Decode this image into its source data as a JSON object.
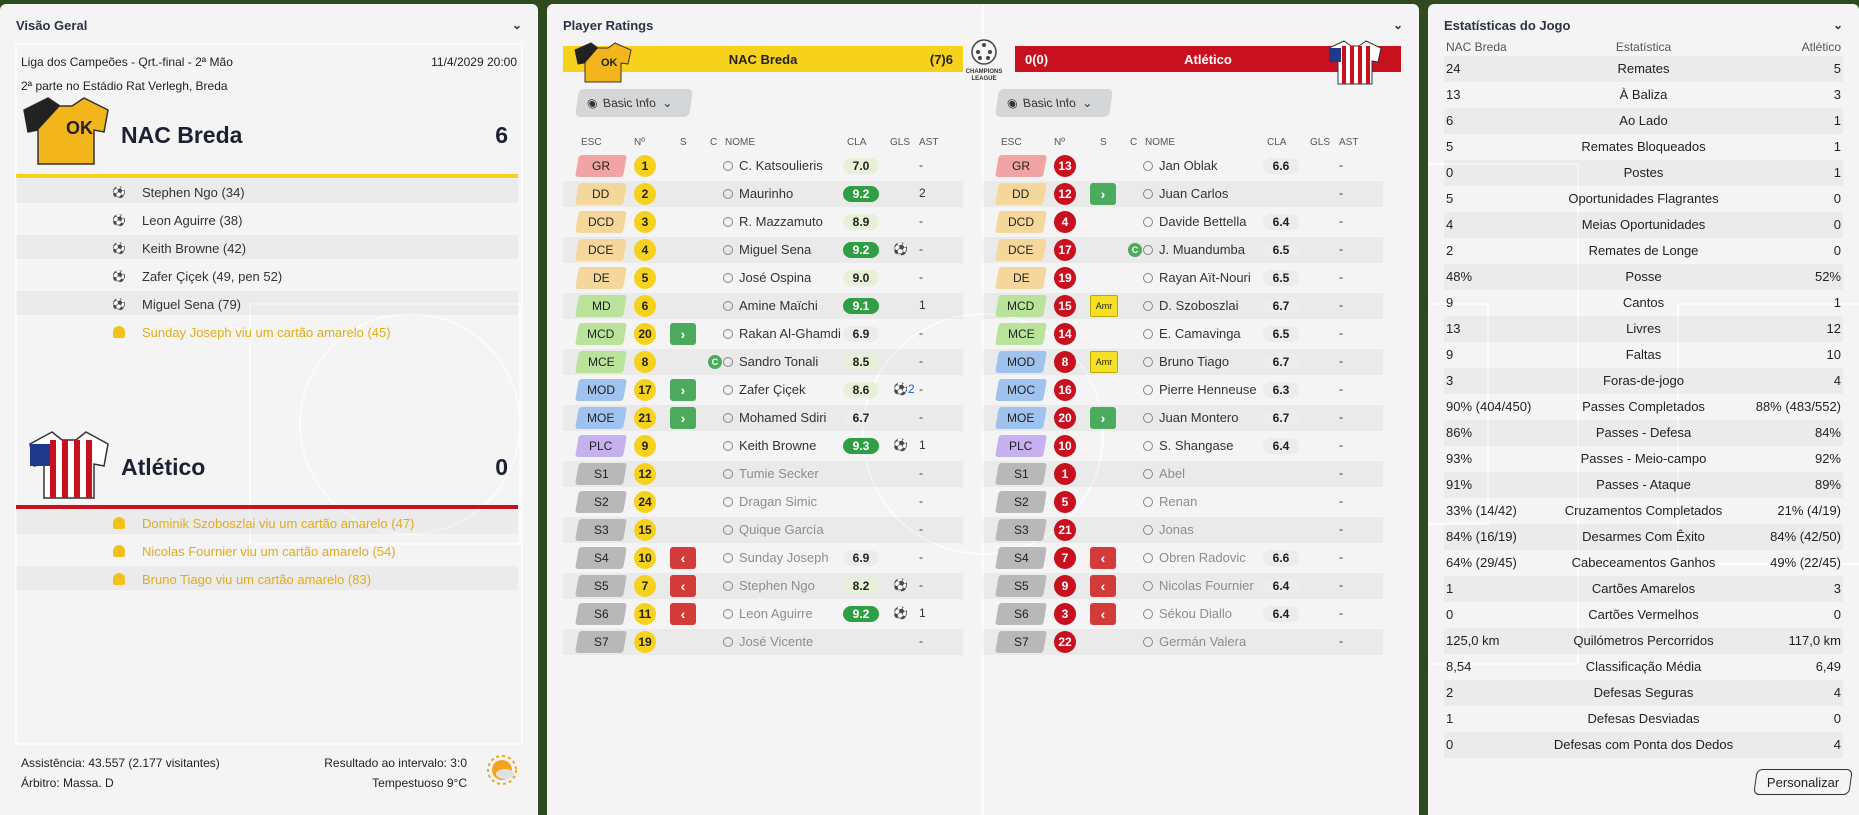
{
  "overview": {
    "title": "Visão Geral",
    "competition": "Liga dos Campeões - Qrt.-final - 2ª Mão",
    "datetime": "11/4/2029 20:00",
    "venue": "2ª parte no Estádio Rat Verlegh, Breda",
    "home": {
      "name": "NAC Breda",
      "score": "6",
      "color": "#f7d21d",
      "events": [
        {
          "type": "goal",
          "text": "Stephen Ngo (34)"
        },
        {
          "type": "goal",
          "text": "Leon Aguirre (38)"
        },
        {
          "type": "goal",
          "text": "Keith Browne (42)"
        },
        {
          "type": "goal",
          "text": "Zafer Çiçek (49, pen 52)"
        },
        {
          "type": "goal",
          "text": "Miguel Sena (79)"
        },
        {
          "type": "yellow",
          "text": "Sunday Joseph viu um cartão amarelo (45)"
        }
      ]
    },
    "away": {
      "name": "Atlético",
      "score": "0",
      "color": "#c8101e",
      "events": [
        {
          "type": "yellow",
          "text": "Dominik Szoboszlai viu um cartão amarelo (47)"
        },
        {
          "type": "yellow",
          "text": "Nicolas Fournier viu um cartão amarelo (54)"
        },
        {
          "type": "yellow",
          "text": "Bruno Tiago viu um cartão amarelo (83)"
        }
      ]
    },
    "attendance": "Assistência: 43.557 (2.177 visitantes)",
    "referee": "Árbitro: Massa. D",
    "halftime": "Resultado ao intervalo: 3:0",
    "weather": "Tempestuoso 9°C"
  },
  "ratings": {
    "title": "Player Ratings",
    "home_bar": {
      "name": "NAC Breda",
      "score": "(7)6"
    },
    "away_bar": {
      "score": "0(0)",
      "name": "Atlético"
    },
    "badge": "CHAMPIONS LEAGUE",
    "basic_info": "Basic Info",
    "columns": {
      "esc": "ESC",
      "num": "Nº",
      "s": "S",
      "c": "C",
      "name": "NOME",
      "cla": "CLA",
      "gls": "GLS",
      "ast": "AST"
    },
    "home_players": [
      {
        "pos": "GR",
        "num": "1",
        "sub": "",
        "cap": false,
        "name": "C. Katsoulieris",
        "rating": "7.0",
        "rc": "l",
        "gls": "",
        "ast": "-",
        "dim": false
      },
      {
        "pos": "DD",
        "num": "2",
        "sub": "",
        "cap": false,
        "name": "Maurinho",
        "rating": "9.2",
        "rc": "g",
        "gls": "",
        "ast": "2",
        "dim": false
      },
      {
        "pos": "DCD",
        "num": "3",
        "sub": "",
        "cap": false,
        "name": "R. Mazzamuto",
        "rating": "8.9",
        "rc": "l",
        "gls": "",
        "ast": "-",
        "dim": false
      },
      {
        "pos": "DCE",
        "num": "4",
        "sub": "",
        "cap": false,
        "name": "Miguel Sena",
        "rating": "9.2",
        "rc": "g",
        "gls": "⚽",
        "ast": "-",
        "dim": false
      },
      {
        "pos": "DE",
        "num": "5",
        "sub": "",
        "cap": false,
        "name": "José Ospina",
        "rating": "9.0",
        "rc": "l",
        "gls": "",
        "ast": "-",
        "dim": false
      },
      {
        "pos": "MD",
        "num": "6",
        "sub": "",
        "cap": false,
        "name": "Amine Maïchi",
        "rating": "9.1",
        "rc": "g",
        "gls": "",
        "ast": "1",
        "dim": false
      },
      {
        "pos": "MCD",
        "num": "20",
        "sub": "in",
        "cap": false,
        "name": "Rakan Al-Ghamdi",
        "rating": "6.9",
        "rc": "w",
        "gls": "",
        "ast": "-",
        "dim": false
      },
      {
        "pos": "MCE",
        "num": "8",
        "sub": "",
        "cap": true,
        "name": "Sandro Tonali",
        "rating": "8.5",
        "rc": "l",
        "gls": "",
        "ast": "-",
        "dim": false
      },
      {
        "pos": "MOD",
        "num": "17",
        "sub": "in",
        "cap": false,
        "name": "Zafer Çiçek",
        "rating": "8.6",
        "rc": "l",
        "gls": "⚽2",
        "ast": "-",
        "dim": false
      },
      {
        "pos": "MOE",
        "num": "21",
        "sub": "in",
        "cap": false,
        "name": "Mohamed Sdiri",
        "rating": "6.7",
        "rc": "w",
        "gls": "",
        "ast": "-",
        "dim": false
      },
      {
        "pos": "PLC",
        "num": "9",
        "sub": "",
        "cap": false,
        "name": "Keith Browne",
        "rating": "9.3",
        "rc": "g",
        "gls": "⚽",
        "ast": "1",
        "dim": false
      },
      {
        "pos": "S1",
        "num": "12",
        "sub": "",
        "cap": false,
        "name": "Tumie Secker",
        "rating": "",
        "rc": "",
        "gls": "",
        "ast": "-",
        "dim": true
      },
      {
        "pos": "S2",
        "num": "24",
        "sub": "",
        "cap": false,
        "name": "Dragan Simic",
        "rating": "",
        "rc": "",
        "gls": "",
        "ast": "-",
        "dim": true
      },
      {
        "pos": "S3",
        "num": "15",
        "sub": "",
        "cap": false,
        "name": "Quique García",
        "rating": "",
        "rc": "",
        "gls": "",
        "ast": "-",
        "dim": true
      },
      {
        "pos": "S4",
        "num": "10",
        "sub": "out",
        "cap": false,
        "name": "Sunday Joseph",
        "rating": "6.9",
        "rc": "w",
        "gls": "",
        "ast": "-",
        "dim": true
      },
      {
        "pos": "S5",
        "num": "7",
        "sub": "out",
        "cap": false,
        "name": "Stephen Ngo",
        "rating": "8.2",
        "rc": "l",
        "gls": "⚽",
        "ast": "-",
        "dim": true
      },
      {
        "pos": "S6",
        "num": "11",
        "sub": "out",
        "cap": false,
        "name": "Leon Aguirre",
        "rating": "9.2",
        "rc": "g",
        "gls": "⚽",
        "ast": "1",
        "dim": true
      },
      {
        "pos": "S7",
        "num": "19",
        "sub": "",
        "cap": false,
        "name": "José Vicente",
        "rating": "",
        "rc": "",
        "gls": "",
        "ast": "-",
        "dim": true
      }
    ],
    "away_players": [
      {
        "pos": "GR",
        "num": "13",
        "sub": "",
        "cap": false,
        "name": "Jan Oblak",
        "rating": "6.6",
        "rc": "w",
        "gls": "",
        "ast": "-",
        "dim": false
      },
      {
        "pos": "DD",
        "num": "12",
        "sub": "in",
        "cap": false,
        "name": "Juan Carlos",
        "rating": "",
        "rc": "",
        "gls": "",
        "ast": "-",
        "dim": false
      },
      {
        "pos": "DCD",
        "num": "4",
        "sub": "",
        "cap": false,
        "name": "Davide Bettella",
        "rating": "6.4",
        "rc": "w",
        "gls": "",
        "ast": "-",
        "dim": false
      },
      {
        "pos": "DCE",
        "num": "17",
        "sub": "",
        "cap": true,
        "name": "J. Muandumba",
        "rating": "6.5",
        "rc": "w",
        "gls": "",
        "ast": "-",
        "dim": false
      },
      {
        "pos": "DE",
        "num": "19",
        "sub": "",
        "cap": false,
        "name": "Rayan Aït-Nouri",
        "rating": "6.5",
        "rc": "w",
        "gls": "",
        "ast": "-",
        "dim": false
      },
      {
        "pos": "MCD",
        "num": "15",
        "sub": "amr",
        "cap": false,
        "name": "D. Szoboszlai",
        "rating": "6.7",
        "rc": "w",
        "gls": "",
        "ast": "-",
        "dim": false
      },
      {
        "pos": "MCE",
        "num": "14",
        "sub": "",
        "cap": false,
        "name": "E. Camavinga",
        "rating": "6.5",
        "rc": "w",
        "gls": "",
        "ast": "-",
        "dim": false
      },
      {
        "pos": "MOD",
        "num": "8",
        "sub": "amr",
        "cap": false,
        "name": "Bruno Tiago",
        "rating": "6.7",
        "rc": "w",
        "gls": "",
        "ast": "-",
        "dim": false
      },
      {
        "pos": "MOC",
        "num": "16",
        "sub": "",
        "cap": false,
        "name": "Pierre Henneuse",
        "rating": "6.3",
        "rc": "w",
        "gls": "",
        "ast": "-",
        "dim": false
      },
      {
        "pos": "MOE",
        "num": "20",
        "sub": "in",
        "cap": false,
        "name": "Juan Montero",
        "rating": "6.7",
        "rc": "w",
        "gls": "",
        "ast": "-",
        "dim": false
      },
      {
        "pos": "PLC",
        "num": "10",
        "sub": "",
        "cap": false,
        "name": "S. Shangase",
        "rating": "6.4",
        "rc": "w",
        "gls": "",
        "ast": "-",
        "dim": false
      },
      {
        "pos": "S1",
        "num": "1",
        "sub": "",
        "cap": false,
        "name": "Abel",
        "rating": "",
        "rc": "",
        "gls": "",
        "ast": "-",
        "dim": true
      },
      {
        "pos": "S2",
        "num": "5",
        "sub": "",
        "cap": false,
        "name": "Renan",
        "rating": "",
        "rc": "",
        "gls": "",
        "ast": "-",
        "dim": true
      },
      {
        "pos": "S3",
        "num": "21",
        "sub": "",
        "cap": false,
        "name": "Jonas",
        "rating": "",
        "rc": "",
        "gls": "",
        "ast": "-",
        "dim": true
      },
      {
        "pos": "S4",
        "num": "7",
        "sub": "out",
        "cap": false,
        "name": "Obren Radovic",
        "rating": "6.6",
        "rc": "w",
        "gls": "",
        "ast": "-",
        "dim": true
      },
      {
        "pos": "S5",
        "num": "9",
        "sub": "out",
        "cap": false,
        "name": "Nicolas Fournier",
        "rating": "6.4",
        "rc": "w",
        "gls": "",
        "ast": "-",
        "dim": true
      },
      {
        "pos": "S6",
        "num": "3",
        "sub": "out",
        "cap": false,
        "name": "Sékou Diallo",
        "rating": "6.4",
        "rc": "w",
        "gls": "",
        "ast": "-",
        "dim": true
      },
      {
        "pos": "S7",
        "num": "22",
        "sub": "",
        "cap": false,
        "name": "Germán Valera",
        "rating": "",
        "rc": "",
        "gls": "",
        "ast": "-",
        "dim": true
      }
    ]
  },
  "stats": {
    "title": "Estatísticas do Jogo",
    "head": {
      "home": "NAC Breda",
      "mid": "Estatística",
      "away": "Atlético"
    },
    "rows": [
      {
        "h": "24",
        "s": "Remates",
        "a": "5"
      },
      {
        "h": "13",
        "s": "À Baliza",
        "a": "3"
      },
      {
        "h": "6",
        "s": "Ao Lado",
        "a": "1"
      },
      {
        "h": "5",
        "s": "Remates Bloqueados",
        "a": "1"
      },
      {
        "h": "0",
        "s": "Postes",
        "a": "1"
      },
      {
        "h": "5",
        "s": "Oportunidades Flagrantes",
        "a": "0"
      },
      {
        "h": "4",
        "s": "Meias Oportunidades",
        "a": "0"
      },
      {
        "h": "2",
        "s": "Remates de Longe",
        "a": "0"
      },
      {
        "h": "48%",
        "s": "Posse",
        "a": "52%"
      },
      {
        "h": "9",
        "s": "Cantos",
        "a": "1"
      },
      {
        "h": "13",
        "s": "Livres",
        "a": "12"
      },
      {
        "h": "9",
        "s": "Faltas",
        "a": "10"
      },
      {
        "h": "3",
        "s": "Foras-de-jogo",
        "a": "4"
      },
      {
        "h": "90% (404/450)",
        "s": "Passes Completados",
        "a": "88% (483/552)"
      },
      {
        "h": "86%",
        "s": "Passes - Defesa",
        "a": "84%"
      },
      {
        "h": "93%",
        "s": "Passes - Meio-campo",
        "a": "92%"
      },
      {
        "h": "91%",
        "s": "Passes - Ataque",
        "a": "89%"
      },
      {
        "h": "33% (14/42)",
        "s": "Cruzamentos Completados",
        "a": "21% (4/19)"
      },
      {
        "h": "84% (16/19)",
        "s": "Desarmes Com Êxito",
        "a": "84% (42/50)"
      },
      {
        "h": "64% (29/45)",
        "s": "Cabeceamentos Ganhos",
        "a": "49% (22/45)"
      },
      {
        "h": "1",
        "s": "Cartões Amarelos",
        "a": "3"
      },
      {
        "h": "0",
        "s": "Cartões Vermelhos",
        "a": "0"
      },
      {
        "h": "125,0 km",
        "s": "Quilómetros Percorridos",
        "a": "117,0 km"
      },
      {
        "h": "8,54",
        "s": "Classificação Média",
        "a": "6,49"
      },
      {
        "h": "2",
        "s": "Defesas Seguras",
        "a": "4"
      },
      {
        "h": "1",
        "s": "Defesas Desviadas",
        "a": "0"
      },
      {
        "h": "0",
        "s": "Defesas com Ponta dos Dedos",
        "a": "4"
      }
    ],
    "button": "Personalizar"
  },
  "colors": {
    "home": "#f7d21d",
    "away": "#c8101e",
    "pitch": "#2f4a1e",
    "pos_gk": "#f2a3a3",
    "pos_def": "#f5d79c",
    "pos_mid": "#b9e39a",
    "pos_att": "#9fc3ee",
    "pos_fwd": "#c5b1f0",
    "pos_sub": "#b8b8b8"
  }
}
